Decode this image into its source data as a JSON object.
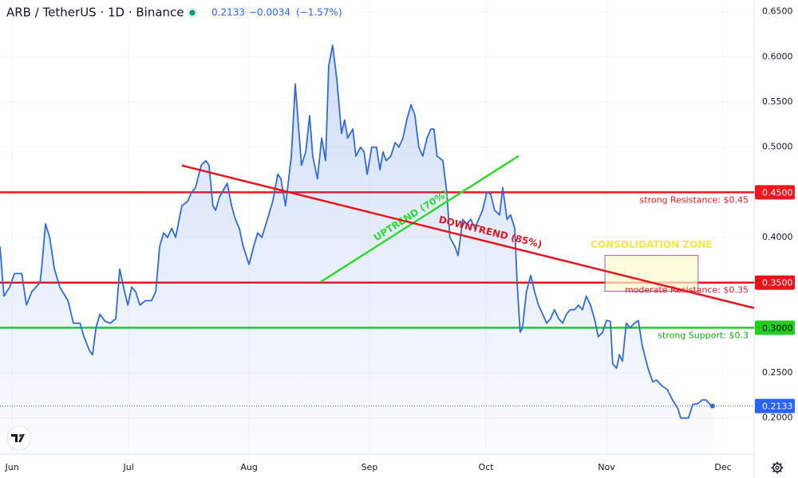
{
  "header": {
    "symbol": "ARB / TetherUS · 1D · Binance",
    "price": "0.2133",
    "change": "−0.0034",
    "change_pct": "(−1.57%)"
  },
  "chart_data": {
    "type": "line",
    "color": "#2f6be0",
    "x": [
      -3.1,
      -2.1,
      -0.6,
      0.6,
      2.5,
      3.7,
      5.1,
      7.2,
      7.6,
      8.6,
      9.7,
      10.9,
      12.3,
      14.4,
      15.8,
      17.5,
      18.5,
      19.9,
      20.7,
      21.6,
      22.6,
      24.0,
      25.3,
      26.7,
      27.7,
      28.7,
      29.8,
      30.8,
      31.8,
      32.9,
      34.3,
      35.9,
      37.0,
      38.0,
      39.0,
      40.0,
      41.1,
      42.1,
      43.7,
      45.2,
      46.2,
      47.2,
      48.7,
      49.9,
      50.7,
      51.7,
      52.4,
      53.4,
      55.4,
      56.5,
      57.5,
      58.5,
      59.5,
      61.0,
      62.2,
      63.2,
      64.3,
      65.7,
      67.1,
      68.4,
      69.2,
      70.4,
      71.9,
      72.9,
      73.7,
      74.5,
      75.6,
      76.6,
      77.4,
      78.6,
      79.7,
      80.7,
      81.5,
      82.5,
      83.6,
      84.8,
      85.6,
      86.4,
      87.7,
      88.5,
      89.7,
      90.6,
      91.4,
      92.6,
      93.8,
      94.7,
      95.5,
      96.3,
      97.5,
      98.6,
      99.6,
      100.6,
      101.6,
      102.7,
      103.7,
      104.7,
      105.7,
      106.8,
      107.8,
      108.6,
      109.4,
      110.9,
      111.9,
      112.7,
      114.0,
      114.8,
      116.0,
      117.0,
      118.1,
      119.1,
      120.1,
      121.1,
      122.2,
      123.2,
      124.2,
      125.5,
      126.3,
      127.4,
      128.3,
      129.4,
      130.0,
      130.8,
      131.4,
      132.4,
      133.5,
      134.5,
      135.5,
      136.6,
      137.6,
      138.6,
      139.6,
      140.7,
      141.7,
      142.7,
      143.7,
      144.8,
      145.8,
      146.8,
      147.8,
      148.9,
      149.9,
      150.9,
      152.0,
      153.0,
      154.0,
      154.6,
      155.6,
      156.3,
      157.1,
      158.1,
      159.1,
      160.2,
      161.2,
      162.2,
      163.7,
      164.9,
      165.9,
      167.4,
      168.6,
      170.0,
      171.4,
      172.1,
      173.1,
      174.1,
      175.2,
      176.6,
      177.6,
      178.6,
      179.7,
      180.3
    ],
    "values": [
      0.39,
      0.335,
      0.345,
      0.36,
      0.36,
      0.325,
      0.34,
      0.35,
      0.365,
      0.415,
      0.4,
      0.365,
      0.345,
      0.33,
      0.305,
      0.305,
      0.29,
      0.275,
      0.27,
      0.3,
      0.315,
      0.307,
      0.305,
      0.31,
      0.365,
      0.345,
      0.325,
      0.345,
      0.34,
      0.325,
      0.33,
      0.33,
      0.34,
      0.39,
      0.405,
      0.4,
      0.41,
      0.4,
      0.435,
      0.44,
      0.45,
      0.455,
      0.48,
      0.485,
      0.48,
      0.435,
      0.43,
      0.445,
      0.46,
      0.435,
      0.42,
      0.41,
      0.39,
      0.37,
      0.39,
      0.405,
      0.4,
      0.42,
      0.44,
      0.47,
      0.465,
      0.435,
      0.49,
      0.57,
      0.525,
      0.48,
      0.495,
      0.535,
      0.49,
      0.465,
      0.51,
      0.485,
      0.59,
      0.613,
      0.575,
      0.515,
      0.53,
      0.51,
      0.52,
      0.49,
      0.5,
      0.495,
      0.47,
      0.5,
      0.5,
      0.475,
      0.495,
      0.485,
      0.49,
      0.505,
      0.5,
      0.51,
      0.53,
      0.547,
      0.535,
      0.5,
      0.49,
      0.51,
      0.52,
      0.52,
      0.49,
      0.485,
      0.45,
      0.4,
      0.39,
      0.38,
      0.42,
      0.415,
      0.42,
      0.41,
      0.42,
      0.43,
      0.45,
      0.448,
      0.43,
      0.425,
      0.455,
      0.42,
      0.425,
      0.41,
      0.35,
      0.295,
      0.3,
      0.34,
      0.358,
      0.34,
      0.325,
      0.315,
      0.305,
      0.31,
      0.32,
      0.31,
      0.305,
      0.315,
      0.32,
      0.32,
      0.325,
      0.32,
      0.335,
      0.325,
      0.31,
      0.29,
      0.295,
      0.308,
      0.307,
      0.26,
      0.255,
      0.27,
      0.263,
      0.305,
      0.3,
      0.305,
      0.308,
      0.28,
      0.255,
      0.24,
      0.242,
      0.235,
      0.232,
      0.22,
      0.21,
      0.2,
      0.2,
      0.2,
      0.215,
      0.216,
      0.22,
      0.22,
      0.215,
      0.2133
    ],
    "xlim": [
      -3.1,
      191
    ],
    "xticks": [
      {
        "value": 0,
        "label": "Jun"
      },
      {
        "value": 30,
        "label": "Jul"
      },
      {
        "value": 61,
        "label": "Aug"
      },
      {
        "value": 92,
        "label": "Sep"
      },
      {
        "value": 122,
        "label": "Oct"
      },
      {
        "value": 153,
        "label": "Nov"
      },
      {
        "value": 183,
        "label": "Dec"
      }
    ],
    "ylim": [
      0.16,
      0.663
    ],
    "yticks": [
      {
        "value": 0.2,
        "label": "0.2000"
      },
      {
        "value": 0.25,
        "label": "0.2500"
      },
      {
        "value": 0.4,
        "label": "0.4000"
      },
      {
        "value": 0.5,
        "label": "0.5000"
      },
      {
        "value": 0.55,
        "label": "0.5500"
      },
      {
        "value": 0.6,
        "label": "0.6000"
      },
      {
        "value": 0.65,
        "label": "0.6500"
      }
    ],
    "grid": true,
    "levels": [
      {
        "value": 0.45,
        "label": "0.4500",
        "text": "strong Resistance: $0.45",
        "color": "#f0161e"
      },
      {
        "value": 0.35,
        "label": "0.3500",
        "text": "moderate Resistance: $0.35",
        "color": "#e8141c"
      },
      {
        "value": 0.3,
        "label": "0.3000",
        "text": "strong Support: $0.3",
        "color": "#22cc22"
      }
    ],
    "trendlines": [
      {
        "label": "UPTREND (70%)",
        "x": [
          79.5,
          130.4
        ],
        "y": [
          0.3509,
          0.4903
        ],
        "color": "#2bdc2b"
      },
      {
        "label": "DOWNTREND (85%)",
        "x": [
          43.7,
          191
        ],
        "y": [
          0.4797,
          0.3218
        ],
        "color": "#e8141c"
      }
    ],
    "zone": {
      "label": "CONSOLIDATION ZONE",
      "x": [
        152.6,
        176.6
      ],
      "y": [
        0.3404,
        0.38
      ],
      "color": "#f5e642"
    }
  }
}
